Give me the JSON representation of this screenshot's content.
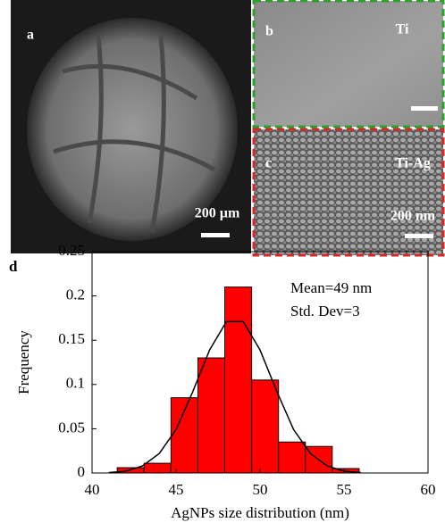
{
  "panels": [
    {
      "label": "a",
      "scale_bar": "200 µm"
    },
    {
      "label": "b",
      "material": "Ti"
    },
    {
      "label": "c",
      "material": "Ti-Ag",
      "scale_bar": "200 nm"
    }
  ],
  "chart_data": {
    "type": "histogram",
    "panel_label": "d",
    "xlabel": "AgNPs size distribution (nm)",
    "ylabel": "Frequency",
    "bins": [
      41.5,
      43.1,
      44.7,
      46.3,
      47.9,
      49.5,
      51.1,
      52.7,
      54.3,
      55.9
    ],
    "values": [
      0.006,
      0.011,
      0.085,
      0.13,
      0.21,
      0.105,
      0.035,
      0.03,
      0.005
    ],
    "color": "#ff0000",
    "fit": {
      "x": [
        41,
        42,
        43,
        44,
        45,
        46,
        47,
        48,
        49,
        50,
        51,
        52,
        53,
        54,
        55,
        56
      ],
      "values": [
        0.0005,
        0.002,
        0.008,
        0.022,
        0.049,
        0.092,
        0.139,
        0.171,
        0.171,
        0.139,
        0.092,
        0.049,
        0.022,
        0.008,
        0.002,
        0.0005
      ],
      "color": "#000000"
    },
    "annotations": [
      "Mean=49 nm",
      "Std. Dev=3"
    ],
    "xlim": [
      40,
      60
    ],
    "xticks": [
      40,
      45,
      50,
      55,
      60
    ],
    "ylim": [
      0,
      0.25
    ],
    "yticks": [
      0,
      0.05,
      0.1,
      0.15,
      0.2,
      0.25
    ]
  }
}
